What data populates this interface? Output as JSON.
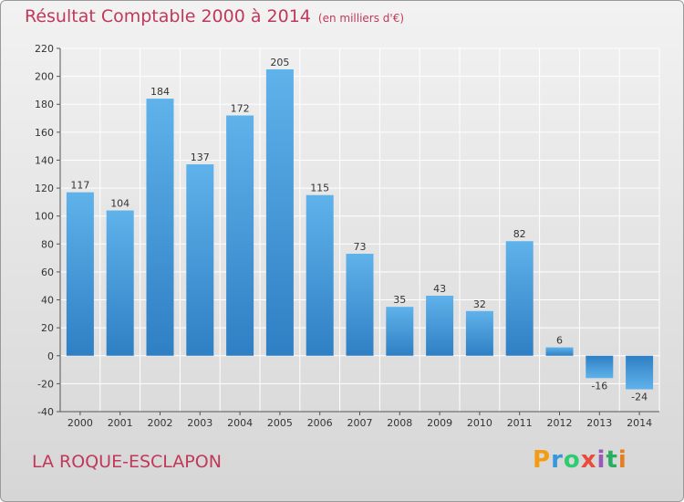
{
  "header": {
    "title": "Résultat Comptable 2000 à 2014",
    "unit": "(en milliers d'€)"
  },
  "footer": {
    "commune": "LA ROQUE-ESCLAPON"
  },
  "brand": {
    "letters": [
      "P",
      "r",
      "o",
      "x",
      "i",
      "t",
      "i"
    ],
    "colors": [
      "#f39c12",
      "#3498db",
      "#2ecc71",
      "#e74c3c",
      "#9b59b6",
      "#27ae60",
      "#e67e22"
    ]
  },
  "colors": {
    "bar_top": "#5fb2ea",
    "bar_bottom": "#2f7fc4",
    "grid": "#ffffff",
    "text": "#333333"
  },
  "chart_data": {
    "type": "bar",
    "title": "Résultat Comptable 2000 à 2014",
    "xlabel": "",
    "ylabel": "",
    "categories": [
      "2000",
      "2001",
      "2002",
      "2003",
      "2004",
      "2005",
      "2006",
      "2007",
      "2008",
      "2009",
      "2010",
      "2011",
      "2012",
      "2013",
      "2014"
    ],
    "values": [
      117,
      104,
      184,
      137,
      172,
      205,
      115,
      73,
      35,
      43,
      32,
      82,
      6,
      -16,
      -24
    ],
    "value_labels": [
      "117",
      "104",
      "184",
      "137",
      "172",
      "205",
      "115",
      "73",
      "35",
      "43",
      "32",
      "82",
      "6",
      "-16",
      "-24"
    ],
    "ylim": [
      -40,
      220
    ],
    "yticks": [
      -40,
      -20,
      0,
      20,
      40,
      60,
      80,
      100,
      120,
      140,
      160,
      180,
      200,
      220
    ],
    "ytick_labels": [
      "-40",
      "-20",
      "0",
      "20",
      "40",
      "60",
      "80",
      "100",
      "120",
      "140",
      "160",
      "180",
      "200",
      "220"
    ],
    "grid": true
  }
}
